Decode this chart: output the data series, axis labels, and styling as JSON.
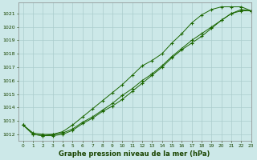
{
  "xlabel": "Graphe pression niveau de la mer (hPa)",
  "ylim": [
    1011.5,
    1021.8
  ],
  "xlim": [
    -0.5,
    23
  ],
  "yticks": [
    1012,
    1013,
    1014,
    1015,
    1016,
    1017,
    1018,
    1019,
    1020,
    1021
  ],
  "xticks": [
    0,
    1,
    2,
    3,
    4,
    5,
    6,
    7,
    8,
    9,
    10,
    11,
    12,
    13,
    14,
    15,
    16,
    17,
    18,
    19,
    20,
    21,
    22,
    23
  ],
  "background_color": "#cce8e8",
  "grid_color": "#aacccc",
  "line_color": "#1a6600",
  "line1_x": [
    0,
    1,
    2,
    3,
    4,
    5,
    6,
    7,
    8,
    9,
    10,
    11,
    12,
    13,
    14,
    15,
    16,
    17,
    18,
    19,
    20,
    21,
    22,
    23
  ],
  "line1": [
    1012.7,
    1012.1,
    1012.0,
    1012.0,
    1012.1,
    1012.4,
    1012.9,
    1013.3,
    1013.8,
    1014.3,
    1014.9,
    1015.4,
    1016.0,
    1016.5,
    1017.1,
    1017.8,
    1018.4,
    1019.0,
    1019.5,
    1020.0,
    1020.5,
    1021.0,
    1021.2,
    1021.2
  ],
  "line2_x": [
    0,
    1,
    2,
    3,
    4,
    5,
    6,
    7,
    8,
    9,
    10,
    11,
    12,
    13,
    14,
    15,
    16,
    17,
    18,
    19,
    20,
    21,
    22,
    23
  ],
  "line2": [
    1012.7,
    1012.0,
    1011.9,
    1011.9,
    1012.0,
    1012.3,
    1012.8,
    1013.2,
    1013.7,
    1014.1,
    1014.6,
    1015.2,
    1015.8,
    1016.4,
    1017.0,
    1017.7,
    1018.3,
    1018.8,
    1019.3,
    1019.9,
    1020.5,
    1021.0,
    1021.3,
    1021.2
  ],
  "line3_x": [
    0,
    1,
    2,
    3,
    4,
    5,
    6,
    7,
    8,
    9,
    10,
    11,
    12,
    13,
    14,
    15,
    16,
    17,
    18,
    19,
    20,
    21,
    22,
    23
  ],
  "line3": [
    1012.7,
    1012.0,
    1011.9,
    1012.0,
    1012.2,
    1012.7,
    1013.3,
    1013.9,
    1014.5,
    1015.1,
    1015.7,
    1016.4,
    1017.1,
    1017.5,
    1018.0,
    1018.8,
    1019.5,
    1020.3,
    1020.9,
    1021.3,
    1021.5,
    1021.5,
    1021.5,
    1021.2
  ]
}
